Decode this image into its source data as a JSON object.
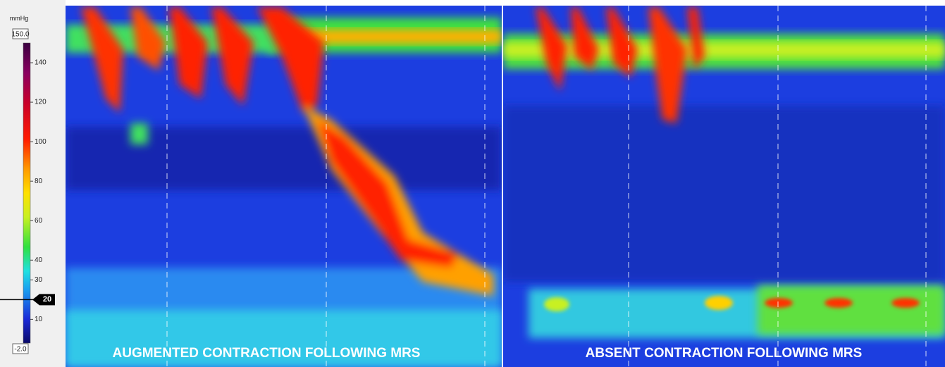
{
  "colorbar": {
    "unit": "mmHg",
    "max": {
      "value": 150,
      "label": "150.0"
    },
    "min": {
      "value": -2,
      "label": "-2.0"
    },
    "ticks": [
      140,
      120,
      100,
      80,
      60,
      40,
      30,
      20,
      10
    ],
    "isobar": 20
  },
  "panels": [
    {
      "caption": "AUGMENTED CONTRACTION FOLLOWING MRS"
    },
    {
      "caption": "ABSENT CONTRACTION FOLLOWING MRS"
    }
  ]
}
